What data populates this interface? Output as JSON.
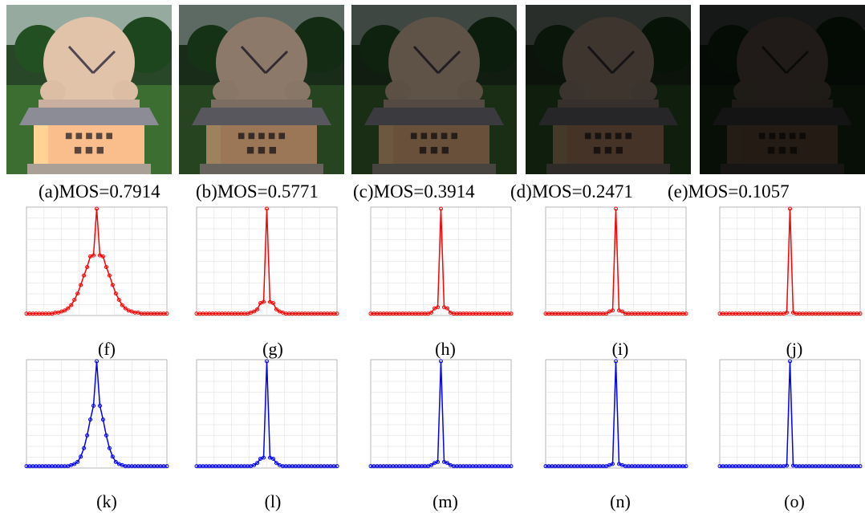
{
  "photos": [
    {
      "caption": "(a)MOS=0.7914",
      "mos": 0.7914,
      "brightness": 1.0
    },
    {
      "caption": "(b)MOS=0.5771",
      "mos": 0.5771,
      "brightness": 0.62
    },
    {
      "caption": "(c)MOS=0.3914",
      "mos": 0.3914,
      "brightness": 0.42
    },
    {
      "caption": "(d)MOS=0.2471",
      "mos": 0.2471,
      "brightness": 0.27
    },
    {
      "caption": "(e)MOS=0.1057",
      "mos": 0.1057,
      "brightness": 0.14
    }
  ],
  "plot_row_red": {
    "labels": [
      "(f)",
      "(g)",
      "(h)",
      "(i)",
      "(j)"
    ],
    "color": "#ff0000"
  },
  "plot_row_blue": {
    "labels": [
      "(k)",
      "(l)",
      "(m)",
      "(n)",
      "(o)"
    ],
    "color": "#0000ff"
  },
  "chart_data": [
    {
      "type": "line",
      "series": [
        {
          "values": [
            0.01,
            0.01,
            0.01,
            0.01,
            0.01,
            0.01,
            0.01,
            0.01,
            0.01,
            0.02,
            0.02,
            0.03,
            0.04,
            0.06,
            0.09,
            0.14,
            0.2,
            0.28,
            0.37,
            0.45,
            0.55,
            0.56,
            1.0,
            0.56,
            0.55,
            0.45,
            0.37,
            0.28,
            0.2,
            0.14,
            0.09,
            0.06,
            0.04,
            0.03,
            0.02,
            0.02,
            0.01,
            0.01,
            0.01,
            0.01,
            0.01,
            0.01,
            0.01,
            0.01,
            0.01
          ]
        }
      ],
      "color": "#ff0000"
    },
    {
      "type": "line",
      "series": [
        {
          "values": [
            0.01,
            0.01,
            0.01,
            0.01,
            0.01,
            0.01,
            0.01,
            0.01,
            0.01,
            0.01,
            0.01,
            0.01,
            0.01,
            0.01,
            0.01,
            0.01,
            0.01,
            0.02,
            0.03,
            0.05,
            0.11,
            0.12,
            1.0,
            0.12,
            0.11,
            0.05,
            0.03,
            0.02,
            0.01,
            0.01,
            0.01,
            0.01,
            0.01,
            0.01,
            0.01,
            0.01,
            0.01,
            0.01,
            0.01,
            0.01,
            0.01,
            0.01,
            0.01,
            0.01,
            0.01
          ]
        }
      ],
      "color": "#ff0000"
    },
    {
      "type": "line",
      "series": [
        {
          "values": [
            0.01,
            0.01,
            0.01,
            0.01,
            0.01,
            0.01,
            0.01,
            0.01,
            0.01,
            0.01,
            0.01,
            0.01,
            0.01,
            0.01,
            0.01,
            0.01,
            0.01,
            0.01,
            0.01,
            0.02,
            0.06,
            0.07,
            1.0,
            0.07,
            0.06,
            0.02,
            0.01,
            0.01,
            0.01,
            0.01,
            0.01,
            0.01,
            0.01,
            0.01,
            0.01,
            0.01,
            0.01,
            0.01,
            0.01,
            0.01,
            0.01,
            0.01,
            0.01,
            0.01,
            0.01
          ]
        }
      ],
      "color": "#ff0000"
    },
    {
      "type": "line",
      "series": [
        {
          "values": [
            0.01,
            0.01,
            0.01,
            0.01,
            0.01,
            0.01,
            0.01,
            0.01,
            0.01,
            0.01,
            0.01,
            0.01,
            0.01,
            0.01,
            0.01,
            0.01,
            0.01,
            0.01,
            0.01,
            0.01,
            0.03,
            0.04,
            1.0,
            0.04,
            0.03,
            0.01,
            0.01,
            0.01,
            0.01,
            0.01,
            0.01,
            0.01,
            0.01,
            0.01,
            0.01,
            0.01,
            0.01,
            0.01,
            0.01,
            0.01,
            0.01,
            0.01,
            0.01,
            0.01,
            0.01
          ]
        }
      ],
      "color": "#ff0000"
    },
    {
      "type": "line",
      "series": [
        {
          "values": [
            0.01,
            0.01,
            0.01,
            0.01,
            0.01,
            0.01,
            0.01,
            0.01,
            0.01,
            0.01,
            0.01,
            0.01,
            0.01,
            0.01,
            0.01,
            0.01,
            0.01,
            0.01,
            0.01,
            0.01,
            0.01,
            0.02,
            1.0,
            0.02,
            0.01,
            0.01,
            0.01,
            0.01,
            0.01,
            0.01,
            0.01,
            0.01,
            0.01,
            0.01,
            0.01,
            0.01,
            0.01,
            0.01,
            0.01,
            0.01,
            0.01,
            0.01,
            0.01,
            0.01,
            0.01
          ]
        }
      ],
      "color": "#ff0000"
    },
    {
      "type": "line",
      "series": [
        {
          "values": [
            0.01,
            0.01,
            0.01,
            0.01,
            0.01,
            0.01,
            0.01,
            0.01,
            0.01,
            0.01,
            0.01,
            0.01,
            0.01,
            0.01,
            0.02,
            0.03,
            0.05,
            0.1,
            0.18,
            0.3,
            0.45,
            0.58,
            1.0,
            0.58,
            0.45,
            0.3,
            0.18,
            0.1,
            0.05,
            0.03,
            0.02,
            0.01,
            0.01,
            0.01,
            0.01,
            0.01,
            0.01,
            0.01,
            0.01,
            0.01,
            0.01,
            0.01,
            0.01,
            0.01,
            0.01
          ]
        }
      ],
      "color": "#0000ff"
    },
    {
      "type": "line",
      "series": [
        {
          "values": [
            0.01,
            0.01,
            0.01,
            0.01,
            0.01,
            0.01,
            0.01,
            0.01,
            0.01,
            0.01,
            0.01,
            0.01,
            0.01,
            0.01,
            0.01,
            0.01,
            0.01,
            0.01,
            0.02,
            0.04,
            0.08,
            0.09,
            1.0,
            0.09,
            0.08,
            0.04,
            0.02,
            0.01,
            0.01,
            0.01,
            0.01,
            0.01,
            0.01,
            0.01,
            0.01,
            0.01,
            0.01,
            0.01,
            0.01,
            0.01,
            0.01,
            0.01,
            0.01,
            0.01,
            0.01
          ]
        }
      ],
      "color": "#0000ff"
    },
    {
      "type": "line",
      "series": [
        {
          "values": [
            0.01,
            0.01,
            0.01,
            0.01,
            0.01,
            0.01,
            0.01,
            0.01,
            0.01,
            0.01,
            0.01,
            0.01,
            0.01,
            0.01,
            0.01,
            0.01,
            0.01,
            0.01,
            0.01,
            0.02,
            0.04,
            0.05,
            1.0,
            0.05,
            0.04,
            0.02,
            0.01,
            0.01,
            0.01,
            0.01,
            0.01,
            0.01,
            0.01,
            0.01,
            0.01,
            0.01,
            0.01,
            0.01,
            0.01,
            0.01,
            0.01,
            0.01,
            0.01,
            0.01,
            0.01
          ]
        }
      ],
      "color": "#0000ff"
    },
    {
      "type": "line",
      "series": [
        {
          "values": [
            0.01,
            0.01,
            0.01,
            0.01,
            0.01,
            0.01,
            0.01,
            0.01,
            0.01,
            0.01,
            0.01,
            0.01,
            0.01,
            0.01,
            0.01,
            0.01,
            0.01,
            0.01,
            0.01,
            0.01,
            0.02,
            0.03,
            1.0,
            0.03,
            0.02,
            0.01,
            0.01,
            0.01,
            0.01,
            0.01,
            0.01,
            0.01,
            0.01,
            0.01,
            0.01,
            0.01,
            0.01,
            0.01,
            0.01,
            0.01,
            0.01,
            0.01,
            0.01,
            0.01,
            0.01
          ]
        }
      ],
      "color": "#0000ff"
    },
    {
      "type": "line",
      "series": [
        {
          "values": [
            0.01,
            0.01,
            0.01,
            0.01,
            0.01,
            0.01,
            0.01,
            0.01,
            0.01,
            0.01,
            0.01,
            0.01,
            0.01,
            0.01,
            0.01,
            0.01,
            0.01,
            0.01,
            0.01,
            0.01,
            0.01,
            0.015,
            1.0,
            0.015,
            0.01,
            0.01,
            0.01,
            0.01,
            0.01,
            0.01,
            0.01,
            0.01,
            0.01,
            0.01,
            0.01,
            0.01,
            0.01,
            0.01,
            0.01,
            0.01,
            0.01,
            0.01,
            0.01,
            0.01,
            0.01
          ]
        }
      ],
      "color": "#0000ff"
    }
  ]
}
